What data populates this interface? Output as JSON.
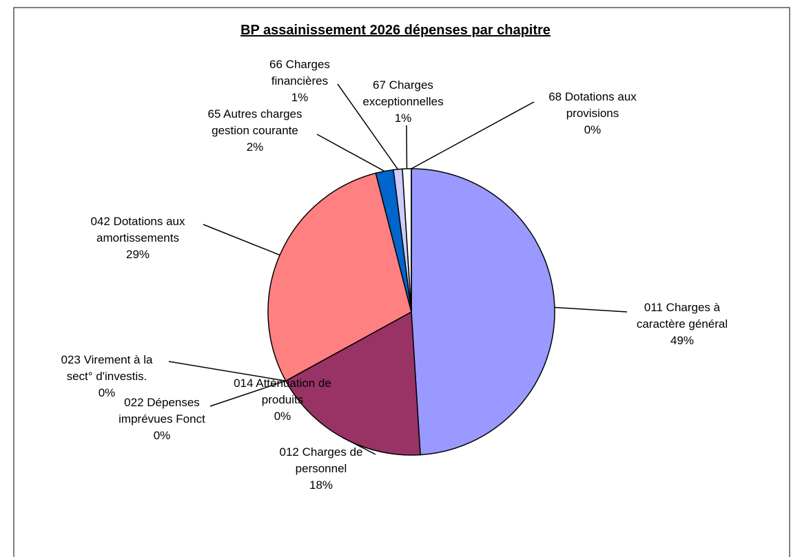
{
  "chart_data": {
    "type": "pie",
    "title": "BP assainissement  2026 dépenses par chapitre",
    "categories": [
      "011 Charges à caractère général",
      "012 Charges de personnel",
      "014 Atténuation de produits",
      "022 Dépenses imprévues Fonct",
      "023 Virement à la sect° d'investis.",
      "042 Dotations aux amortissements",
      "65 Autres charges gestion courante",
      "66 Charges financières",
      "67 Charges exceptionnelles",
      "68 Dotations aux provisions"
    ],
    "values": [
      49,
      18,
      0,
      0,
      0,
      29,
      2,
      1,
      1,
      0
    ],
    "value_labels": [
      "49%",
      "18%",
      "0%",
      "0%",
      "0%",
      "29%",
      "2%",
      "1%",
      "1%",
      "0%"
    ],
    "colors": [
      "#9999ff",
      "#993366",
      "#ffffcc",
      "#ccffff",
      "#660066",
      "#ff8080",
      "#0066cc",
      "#ccccff",
      "#ffffff",
      "#000080"
    ]
  }
}
